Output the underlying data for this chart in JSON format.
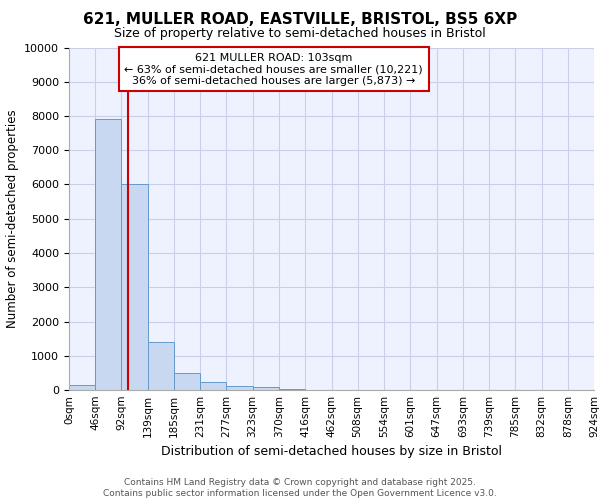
{
  "title_line1": "621, MULLER ROAD, EASTVILLE, BRISTOL, BS5 6XP",
  "title_line2": "Size of property relative to semi-detached houses in Bristol",
  "xlabel": "Distribution of semi-detached houses by size in Bristol",
  "ylabel": "Number of semi-detached properties",
  "bin_edges": [
    0,
    46,
    92,
    139,
    185,
    231,
    277,
    323,
    370,
    416,
    462,
    508,
    554,
    601,
    647,
    693,
    739,
    785,
    832,
    878,
    924
  ],
  "bar_heights": [
    150,
    7900,
    6000,
    1400,
    500,
    230,
    130,
    80,
    20,
    5,
    3,
    2,
    1,
    1,
    0,
    0,
    0,
    0,
    0,
    0
  ],
  "bar_color": "#c8d8f0",
  "bar_edgecolor": "#6699cc",
  "property_size": 103,
  "redline_color": "#cc0000",
  "annotation_title": "621 MULLER ROAD: 103sqm",
  "annotation_line2": "← 63% of semi-detached houses are smaller (10,221)",
  "annotation_line3": "36% of semi-detached houses are larger (5,873) →",
  "annotation_box_edgecolor": "#cc0000",
  "ylim": [
    0,
    10000
  ],
  "yticks": [
    0,
    1000,
    2000,
    3000,
    4000,
    5000,
    6000,
    7000,
    8000,
    9000,
    10000
  ],
  "footer_line1": "Contains HM Land Registry data © Crown copyright and database right 2025.",
  "footer_line2": "Contains public sector information licensed under the Open Government Licence v3.0.",
  "background_color": "#eef2ff",
  "grid_color": "#c8cfe8"
}
